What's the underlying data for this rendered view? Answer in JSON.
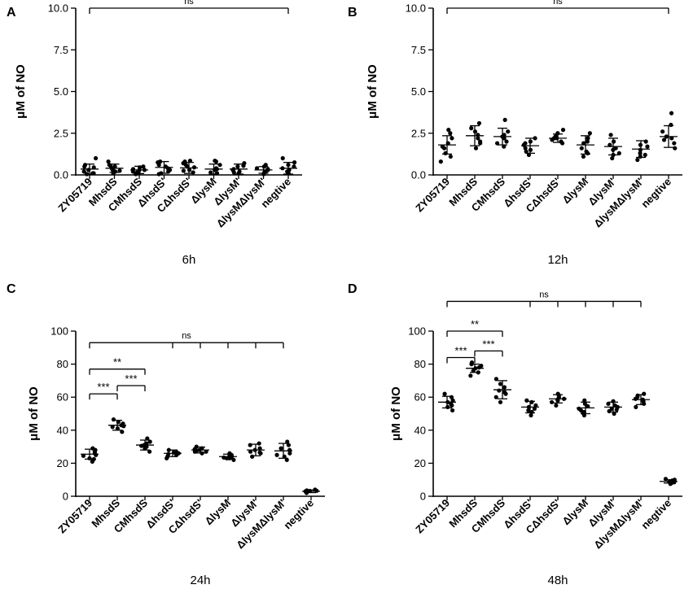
{
  "chart_data": [
    {
      "panel": "A",
      "type": "scatter",
      "xlabel": "6h",
      "ylabel": "μM of NO",
      "ylim": [
        0,
        10
      ],
      "yticks": [
        "0.0",
        "2.5",
        "5.0",
        "7.5",
        "10.0"
      ],
      "categories": [
        "ZY05719",
        "MhsdS",
        "CMhsdS",
        "ΔhsdS'",
        "CΔhsdS'",
        "ΔlysM",
        "ΔlysM'",
        "ΔlysMΔlysM'",
        "negtive"
      ],
      "means": [
        0.35,
        0.4,
        0.3,
        0.45,
        0.42,
        0.35,
        0.35,
        0.3,
        0.4
      ],
      "sd": [
        0.3,
        0.25,
        0.22,
        0.35,
        0.33,
        0.3,
        0.3,
        0.2,
        0.35
      ],
      "points": [
        [
          0.1,
          0.2,
          0.3,
          0.45,
          0.6,
          0.1,
          0.5,
          1.0,
          0.05
        ],
        [
          0.2,
          0.3,
          0.4,
          0.5,
          0.6,
          0.8,
          0.25,
          0.55,
          0.1
        ],
        [
          0.1,
          0.15,
          0.3,
          0.35,
          0.5,
          0.2,
          0.45,
          0.05,
          0.3
        ],
        [
          0.1,
          0.3,
          0.5,
          0.6,
          0.8,
          0.2,
          0.4,
          0.75,
          0.05
        ],
        [
          0.15,
          0.3,
          0.45,
          0.6,
          0.8,
          0.25,
          0.5,
          0.7,
          0.85
        ],
        [
          0.1,
          0.3,
          0.4,
          0.6,
          0.8,
          0.15,
          0.35,
          0.85
        ],
        [
          0.1,
          0.2,
          0.35,
          0.5,
          0.7,
          0.15,
          0.3,
          0.55
        ],
        [
          0.05,
          0.15,
          0.3,
          0.4,
          0.6,
          0.2,
          0.35,
          0.5
        ],
        [
          0.1,
          0.3,
          0.4,
          0.6,
          0.75,
          0.2,
          0.5,
          1.0
        ]
      ],
      "significance": [
        {
          "from": 0,
          "to": 8,
          "level": 10.0,
          "label": "ns",
          "ticks": [
            0,
            8
          ]
        }
      ]
    },
    {
      "panel": "B",
      "type": "scatter",
      "xlabel": "12h",
      "ylabel": "μM of NO",
      "ylim": [
        0,
        10
      ],
      "yticks": [
        "0.0",
        "2.5",
        "5.0",
        "7.5",
        "10.0"
      ],
      "categories": [
        "ZY05719",
        "MhsdS",
        "CMhsdS",
        "ΔhsdS'",
        "CΔhsdS'",
        "ΔlysM",
        "ΔlysM'",
        "ΔlysMΔlysM'",
        "negtive"
      ],
      "means": [
        1.8,
        2.35,
        2.3,
        1.75,
        2.2,
        1.8,
        1.7,
        1.55,
        2.3
      ],
      "sd": [
        0.55,
        0.6,
        0.5,
        0.45,
        0.25,
        0.55,
        0.5,
        0.5,
        0.65
      ],
      "points": [
        [
          0.8,
          1.3,
          1.6,
          1.9,
          2.2,
          2.5,
          1.7,
          2.7,
          1.1
        ],
        [
          1.6,
          1.9,
          2.2,
          2.4,
          2.6,
          3.1,
          2.0,
          2.8
        ],
        [
          1.7,
          2.0,
          2.2,
          2.4,
          2.6,
          3.3,
          1.9,
          2.3
        ],
        [
          1.2,
          1.4,
          1.6,
          1.8,
          2.0,
          2.2,
          1.5,
          1.9
        ],
        [
          1.9,
          2.0,
          2.1,
          2.2,
          2.3,
          2.5,
          2.7,
          2.2
        ],
        [
          1.1,
          1.3,
          1.6,
          1.9,
          2.2,
          2.5,
          1.4,
          2.0
        ],
        [
          1.0,
          1.3,
          1.5,
          1.8,
          2.0,
          2.4,
          1.6,
          1.2
        ],
        [
          0.9,
          1.1,
          1.3,
          1.5,
          1.8,
          2.0,
          1.2,
          1.7
        ],
        [
          1.6,
          1.9,
          2.1,
          2.3,
          2.6,
          3.0,
          3.7,
          2.2
        ]
      ],
      "significance": [
        {
          "from": 0,
          "to": 8,
          "level": 10.0,
          "label": "ns",
          "ticks": [
            0,
            8
          ]
        }
      ]
    },
    {
      "panel": "C",
      "type": "scatter",
      "xlabel": "24h",
      "ylabel": "μM of NO",
      "ylim": [
        0,
        100
      ],
      "yticks": [
        "0",
        "20",
        "40",
        "60",
        "80",
        "100"
      ],
      "categories": [
        "ZY05719",
        "MhsdS",
        "CMhsdS",
        "ΔhsdS'",
        "CΔhsdS'",
        "ΔlysM",
        "ΔlysM'",
        "ΔlysMΔlysM'",
        "negtive"
      ],
      "means": [
        25.5,
        43,
        31,
        26,
        28,
        24,
        28,
        27.5,
        3
      ],
      "sd": [
        3,
        3,
        3,
        2,
        1.8,
        1.5,
        3.5,
        4.5,
        0.8
      ],
      "points": [
        [
          21,
          23,
          24.5,
          26,
          27,
          28,
          25,
          22.5,
          29
        ],
        [
          39,
          41,
          42,
          43,
          44,
          45,
          46.5,
          42.5
        ],
        [
          27,
          29,
          30,
          31,
          32,
          33,
          35,
          30.5
        ],
        [
          23,
          24,
          25,
          26,
          27,
          28,
          25.5,
          26.5
        ],
        [
          26,
          27,
          27.5,
          28,
          29,
          30,
          28.5,
          27
        ],
        [
          22,
          23,
          23.5,
          24,
          25,
          26,
          23,
          24.5
        ],
        [
          24,
          26,
          27,
          28,
          29,
          31,
          32,
          26.5
        ],
        [
          22,
          24,
          26,
          28,
          29,
          31,
          33,
          25
        ],
        [
          2,
          2.5,
          3,
          3.2,
          3.5,
          4,
          2.8,
          3.3
        ]
      ],
      "significance": [
        {
          "from": 0,
          "to": 1,
          "level": 62,
          "label": "***",
          "ticks": [
            0,
            1
          ]
        },
        {
          "from": 1,
          "to": 2,
          "level": 67,
          "label": "***",
          "ticks": [
            1,
            2
          ]
        },
        {
          "from": 0,
          "to": 2,
          "level": 77,
          "label": "**",
          "ticks": [
            0,
            2
          ]
        },
        {
          "from": 0,
          "to": 7,
          "level": 93,
          "label": "ns",
          "ticks": [
            0,
            3,
            4,
            5,
            6,
            7
          ]
        }
      ]
    },
    {
      "panel": "D",
      "type": "scatter",
      "xlabel": "48h",
      "ylabel": "μM of NO",
      "ylim": [
        0,
        100
      ],
      "yticks": [
        "0",
        "20",
        "40",
        "60",
        "80",
        "100"
      ],
      "categories": [
        "ZY05719",
        "MhsdS",
        "CMhsdS",
        "ΔhsdS'",
        "CΔhsdS'",
        "ΔlysM",
        "ΔlysM'",
        "ΔlysMΔlysM'",
        "negtive"
      ],
      "means": [
        57,
        77.5,
        64.5,
        54,
        59,
        53.5,
        54,
        58.5,
        9
      ],
      "sd": [
        3.5,
        2.5,
        5.5,
        3.5,
        2.5,
        3.5,
        3,
        3,
        1
      ],
      "points": [
        [
          52,
          54,
          56,
          57,
          58,
          60,
          62,
          55
        ],
        [
          73,
          75,
          76,
          77.5,
          79,
          80,
          81,
          78
        ],
        [
          57,
          60,
          62,
          64,
          66,
          68,
          71,
          63
        ],
        [
          49,
          51,
          53,
          54,
          55,
          57,
          58,
          52
        ],
        [
          55,
          57,
          58,
          59,
          60,
          61,
          62,
          58.5
        ],
        [
          49,
          51,
          52,
          53,
          54.5,
          56,
          58,
          50.5
        ],
        [
          50,
          51.5,
          53,
          54,
          55,
          56,
          57.5,
          52.5
        ],
        [
          54,
          56,
          57.5,
          58.5,
          60,
          61,
          62,
          59
        ],
        [
          7.5,
          8,
          8.5,
          9,
          9.5,
          10,
          10.5,
          8.8
        ]
      ],
      "significance": [
        {
          "from": 0,
          "to": 1,
          "level": 84,
          "label": "***",
          "ticks": [
            0,
            1
          ]
        },
        {
          "from": 1,
          "to": 2,
          "level": 88,
          "label": "***",
          "ticks": [
            1,
            2
          ]
        },
        {
          "from": 0,
          "to": 2,
          "level": 100,
          "label": "**",
          "ticks": [
            0,
            2
          ]
        },
        {
          "from": 0,
          "to": 7,
          "level": 118,
          "label": "ns",
          "ticks": [
            0,
            3,
            4,
            5,
            6,
            7
          ]
        }
      ]
    }
  ]
}
